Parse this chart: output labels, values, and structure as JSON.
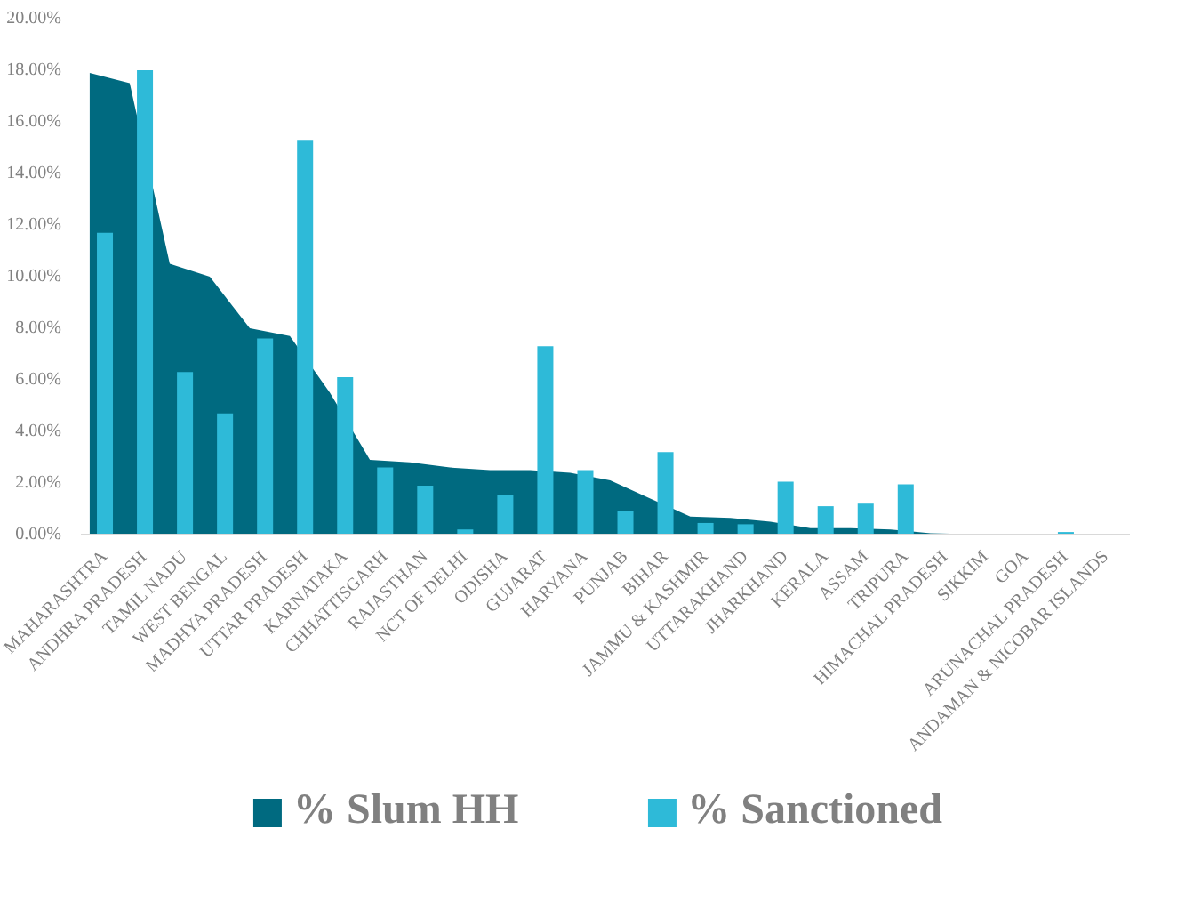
{
  "chart_data": {
    "type": "bar",
    "categories": [
      "MAHARASHTRA",
      "ANDHRA PRADESH",
      "TAMIL NADU",
      "WEST BENGAL",
      "MADHYA PRADESH",
      "UTTAR PRADESH",
      "KARNATAKA",
      "CHHATTISGARH",
      "RAJASTHAN",
      "NCT OF DELHI",
      "ODISHA",
      "GUJARAT",
      "HARYANA",
      "PUNJAB",
      "BIHAR",
      "JAMMU & KASHMIR",
      "UTTARAKHAND",
      "JHARKHAND",
      "KERALA",
      "ASSAM",
      "TRIPURA",
      "HIMACHAL PRADESH",
      "SIKKIM",
      "GOA",
      "ARUNACHAL PRADESH",
      "ANDAMAN & NICOBAR ISLANDS"
    ],
    "series": [
      {
        "name": "% Slum HH",
        "type": "area",
        "color": "#006a80",
        "values": [
          17.9,
          17.5,
          10.5,
          10.0,
          8.0,
          7.7,
          5.5,
          2.9,
          2.8,
          2.6,
          2.5,
          2.5,
          2.4,
          2.1,
          1.4,
          0.7,
          0.65,
          0.5,
          0.25,
          0.25,
          0.2,
          0.05,
          0.02,
          0.02,
          0.02,
          0.02
        ]
      },
      {
        "name": "% Sanctioned",
        "color": "#2ebad8",
        "values": [
          11.7,
          18.0,
          6.3,
          4.7,
          7.6,
          15.3,
          6.1,
          2.6,
          1.9,
          0.2,
          1.55,
          7.3,
          2.5,
          0.9,
          3.2,
          0.45,
          0.4,
          2.05,
          1.1,
          1.2,
          1.95,
          null,
          null,
          null,
          0.1,
          0.0
        ]
      }
    ],
    "ylim": [
      0,
      20
    ],
    "yticks": [
      {
        "value": 0,
        "label": "0.00%"
      },
      {
        "value": 2,
        "label": "2.00%"
      },
      {
        "value": 4,
        "label": "4.00%"
      },
      {
        "value": 6,
        "label": "6.00%"
      },
      {
        "value": 8,
        "label": "8.00%"
      },
      {
        "value": 10,
        "label": "10.00%"
      },
      {
        "value": 12,
        "label": "12.00%"
      },
      {
        "value": 14,
        "label": "14.00%"
      },
      {
        "value": 16,
        "label": "16.00%"
      },
      {
        "value": 18,
        "label": "18.00%"
      },
      {
        "value": 20,
        "label": "20.00%"
      }
    ],
    "grid": false,
    "legend": "bottom"
  }
}
